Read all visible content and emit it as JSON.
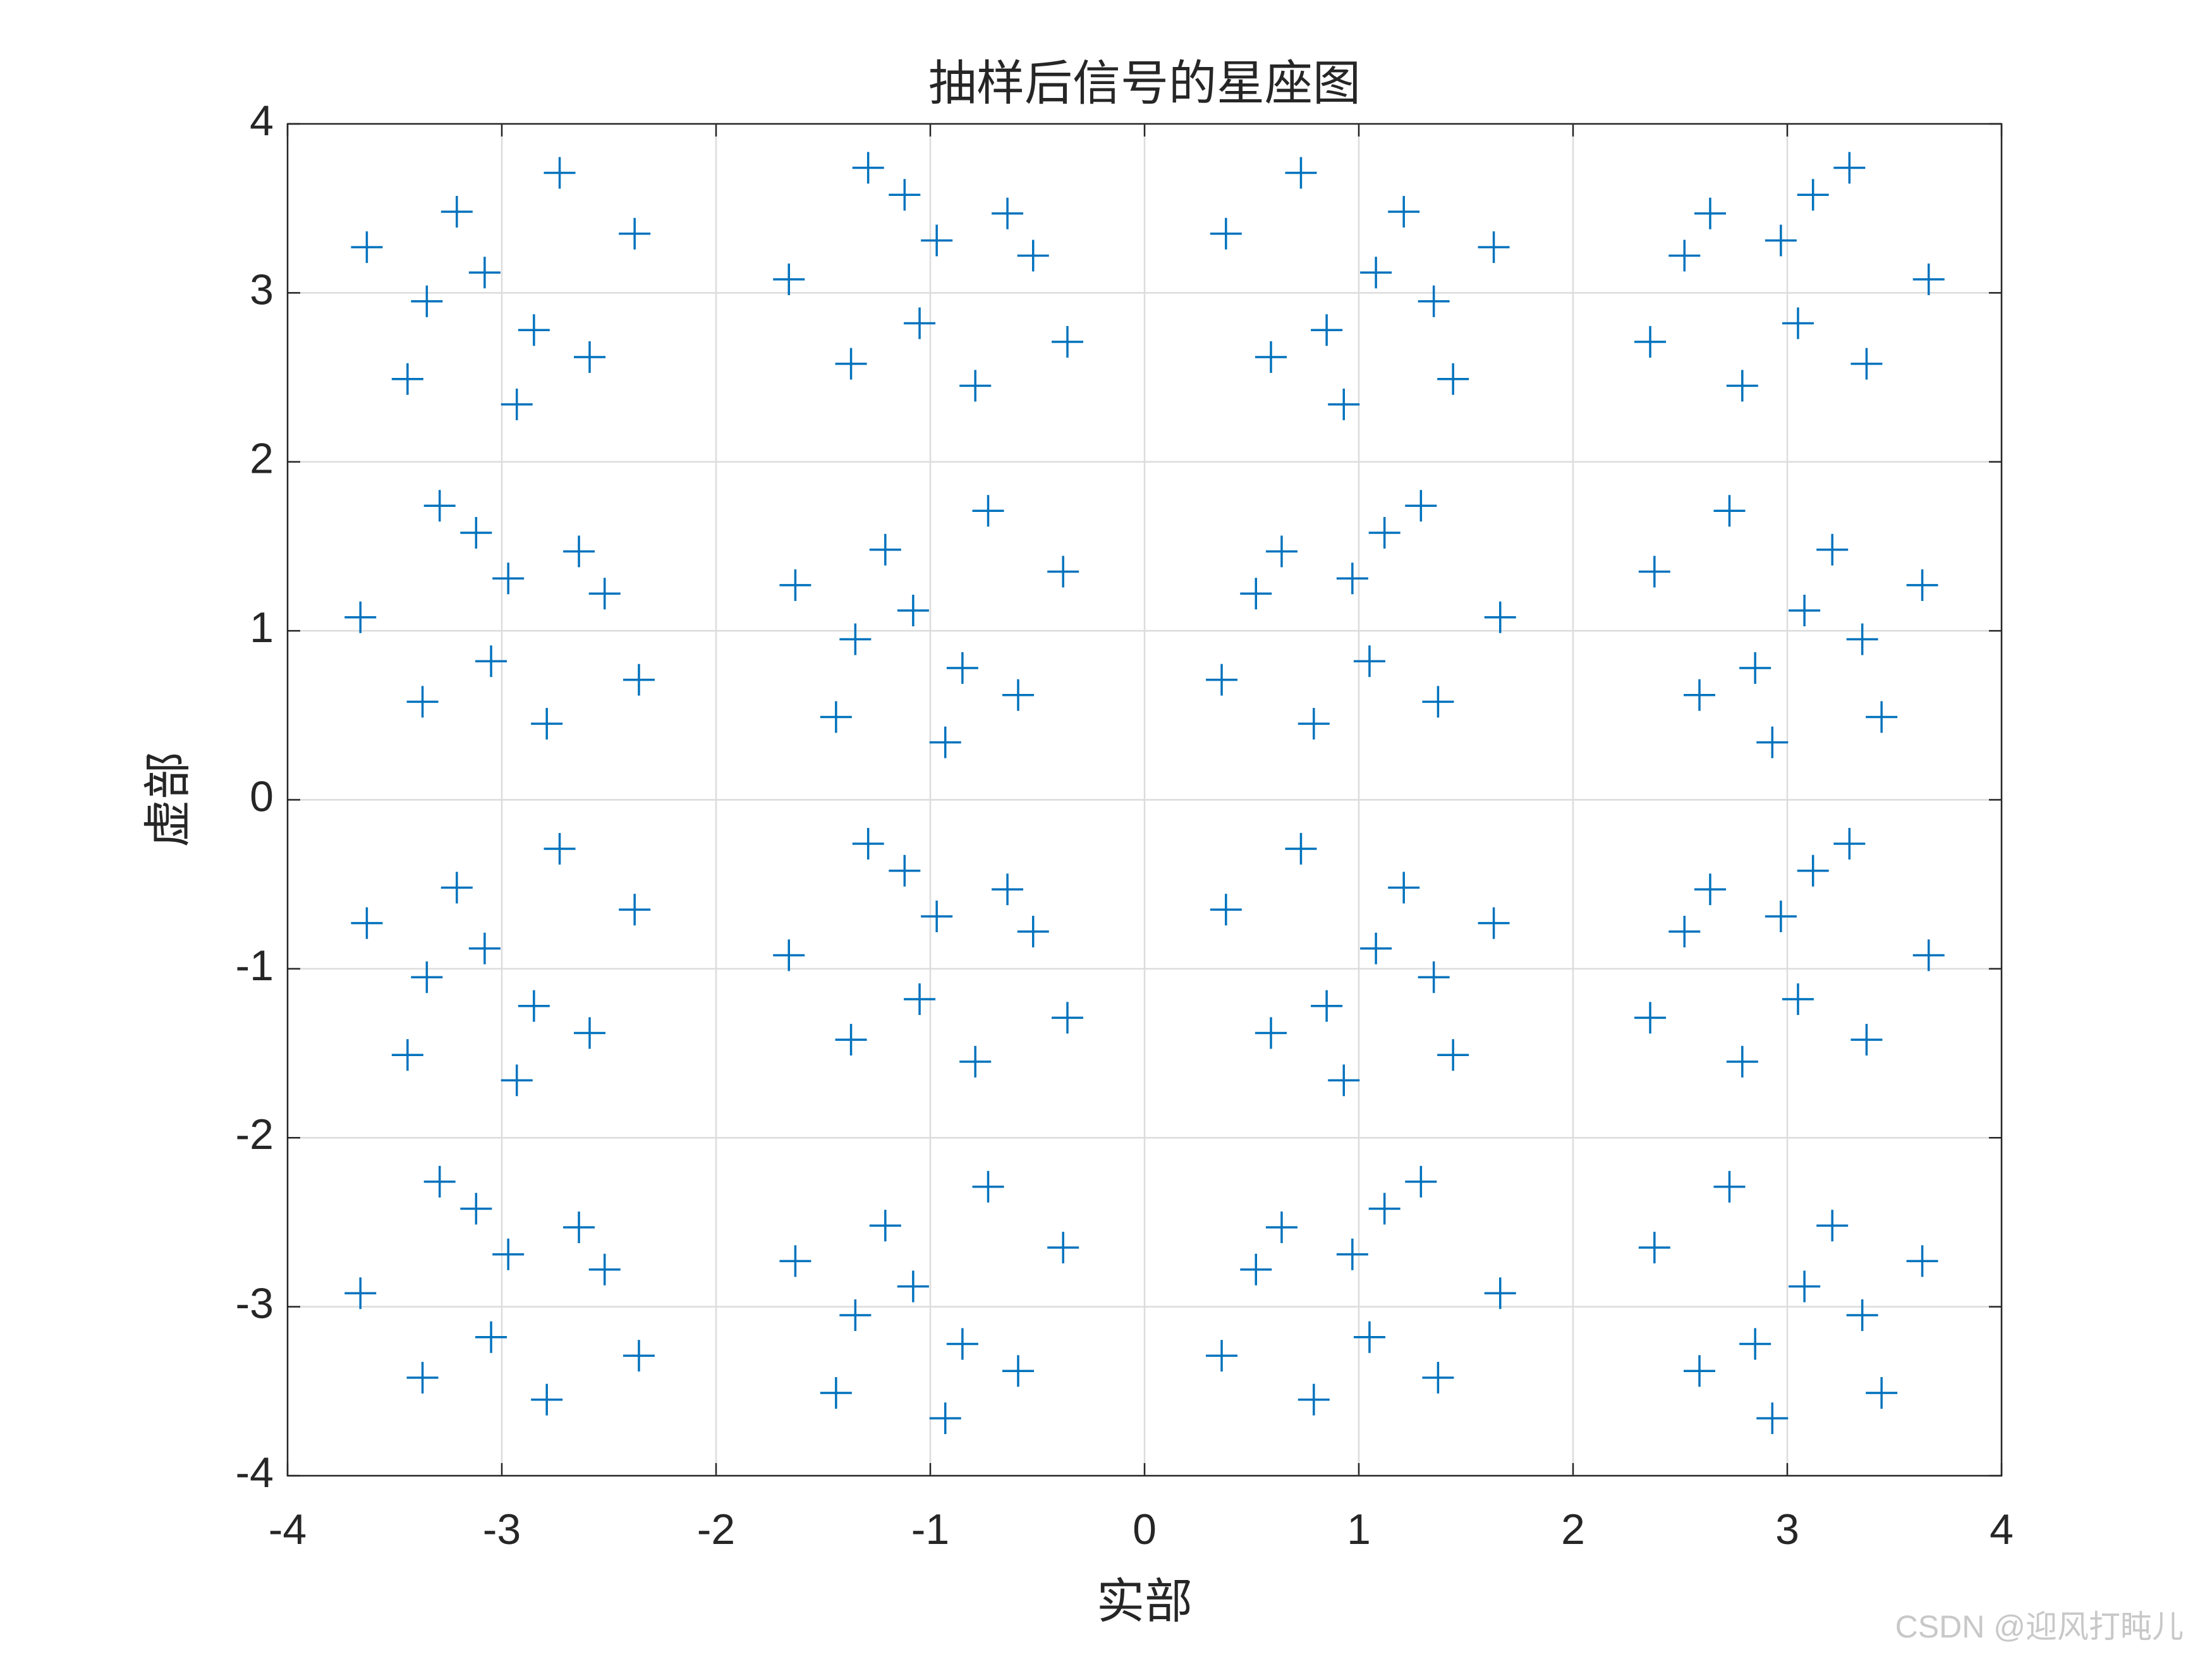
{
  "chart_data": {
    "type": "scatter",
    "title": "抽样后信号的星座图",
    "xlabel": "实部",
    "ylabel": "虚部",
    "xlim": [
      -4,
      4
    ],
    "ylim": [
      -4,
      4
    ],
    "xticks": [
      -4,
      -3,
      -2,
      -1,
      0,
      1,
      2,
      3,
      4
    ],
    "yticks": [
      -4,
      -3,
      -2,
      -1,
      0,
      1,
      2,
      3,
      4
    ],
    "grid": true,
    "marker": "+",
    "series": [
      {
        "color": "#0072BD",
        "x": [
          -2.38,
          -3.21,
          -2.85,
          -3.44,
          -3.08,
          -2.59,
          -3.63,
          -2.73,
          -3.35,
          -2.93,
          -1.12,
          -0.52,
          -1.37,
          -0.79,
          -1.66,
          -0.97,
          -1.29,
          -0.36,
          -1.05,
          -0.64,
          0.38,
          1.21,
          0.85,
          1.44,
          1.08,
          0.59,
          1.63,
          0.73,
          1.35,
          0.93,
          3.12,
          2.52,
          3.37,
          2.79,
          3.66,
          2.97,
          3.29,
          2.36,
          3.05,
          2.64,
          -3.12,
          -2.52,
          -3.37,
          -2.79,
          -3.66,
          -2.97,
          -3.29,
          -2.36,
          -3.05,
          -2.64,
          -0.38,
          -1.21,
          -0.85,
          -1.44,
          -1.08,
          -0.59,
          -1.63,
          -0.73,
          -1.35,
          -0.93,
          1.12,
          0.52,
          1.37,
          0.79,
          1.66,
          0.97,
          1.29,
          0.36,
          1.05,
          0.64,
          2.38,
          3.21,
          2.85,
          3.44,
          3.08,
          2.59,
          3.63,
          2.73,
          3.35,
          2.93,
          -2.38,
          -3.21,
          -2.85,
          -3.44,
          -3.08,
          -2.59,
          -3.63,
          -2.73,
          -3.35,
          -2.93,
          -1.12,
          -0.52,
          -1.37,
          -0.79,
          -1.66,
          -0.97,
          -1.29,
          -0.36,
          -1.05,
          -0.64,
          0.38,
          1.21,
          0.85,
          1.44,
          1.08,
          0.59,
          1.63,
          0.73,
          1.35,
          0.93,
          3.12,
          2.52,
          3.37,
          2.79,
          3.66,
          2.97,
          3.29,
          2.36,
          3.05,
          2.64,
          -3.12,
          -2.52,
          -3.37,
          -2.79,
          -3.66,
          -2.97,
          -3.29,
          -2.36,
          -3.05,
          -2.64,
          -0.38,
          -1.21,
          -0.85,
          -1.44,
          -1.08,
          -0.59,
          -1.63,
          -0.73,
          -1.35,
          -0.93,
          1.12,
          0.52,
          1.37,
          0.79,
          1.66,
          0.97,
          1.29,
          0.36,
          1.05,
          0.64,
          2.38,
          3.21,
          2.85,
          3.44,
          3.08,
          2.59,
          3.63,
          2.73,
          3.35,
          2.93
        ],
        "y": [
          3.35,
          3.48,
          2.78,
          2.49,
          3.12,
          2.62,
          3.27,
          3.71,
          2.95,
          2.34,
          3.58,
          3.22,
          2.58,
          2.45,
          3.08,
          3.31,
          3.74,
          2.71,
          2.82,
          3.47,
          3.35,
          3.48,
          2.78,
          2.49,
          3.12,
          2.62,
          3.27,
          3.71,
          2.95,
          2.34,
          3.58,
          3.22,
          2.58,
          2.45,
          3.08,
          3.31,
          3.74,
          2.71,
          2.82,
          3.47,
          1.58,
          1.22,
          0.58,
          0.45,
          1.08,
          1.31,
          1.74,
          0.71,
          0.82,
          1.47,
          1.35,
          1.48,
          0.78,
          0.49,
          1.12,
          0.62,
          1.27,
          1.71,
          0.95,
          0.34,
          1.58,
          1.22,
          0.58,
          0.45,
          1.08,
          1.31,
          1.74,
          0.71,
          0.82,
          1.47,
          1.35,
          1.48,
          0.78,
          0.49,
          1.12,
          0.62,
          1.27,
          1.71,
          0.95,
          0.34,
          -0.65,
          -0.52,
          -1.22,
          -1.51,
          -0.88,
          -1.38,
          -0.73,
          -0.29,
          -1.05,
          -1.66,
          -0.42,
          -0.78,
          -1.42,
          -1.55,
          -0.92,
          -0.69,
          -0.26,
          -1.29,
          -1.18,
          -0.53,
          -0.65,
          -0.52,
          -1.22,
          -1.51,
          -0.88,
          -1.38,
          -0.73,
          -0.29,
          -1.05,
          -1.66,
          -0.42,
          -0.78,
          -1.42,
          -1.55,
          -0.92,
          -0.69,
          -0.26,
          -1.29,
          -1.18,
          -0.53,
          -2.42,
          -2.78,
          -3.42,
          -3.55,
          -2.92,
          -2.69,
          -2.26,
          -3.29,
          -3.18,
          -2.53,
          -2.65,
          -2.52,
          -3.22,
          -3.51,
          -2.88,
          -3.38,
          -2.73,
          -2.29,
          -3.05,
          -3.66,
          -2.42,
          -2.78,
          -3.42,
          -3.55,
          -2.92,
          -2.69,
          -2.26,
          -3.29,
          -3.18,
          -2.53,
          -2.65,
          -2.52,
          -3.22,
          -3.51,
          -2.88,
          -3.38,
          -2.73,
          -2.29,
          -3.05,
          -3.66
        ]
      }
    ]
  },
  "watermark": "CSDN @迎风打盹儿"
}
